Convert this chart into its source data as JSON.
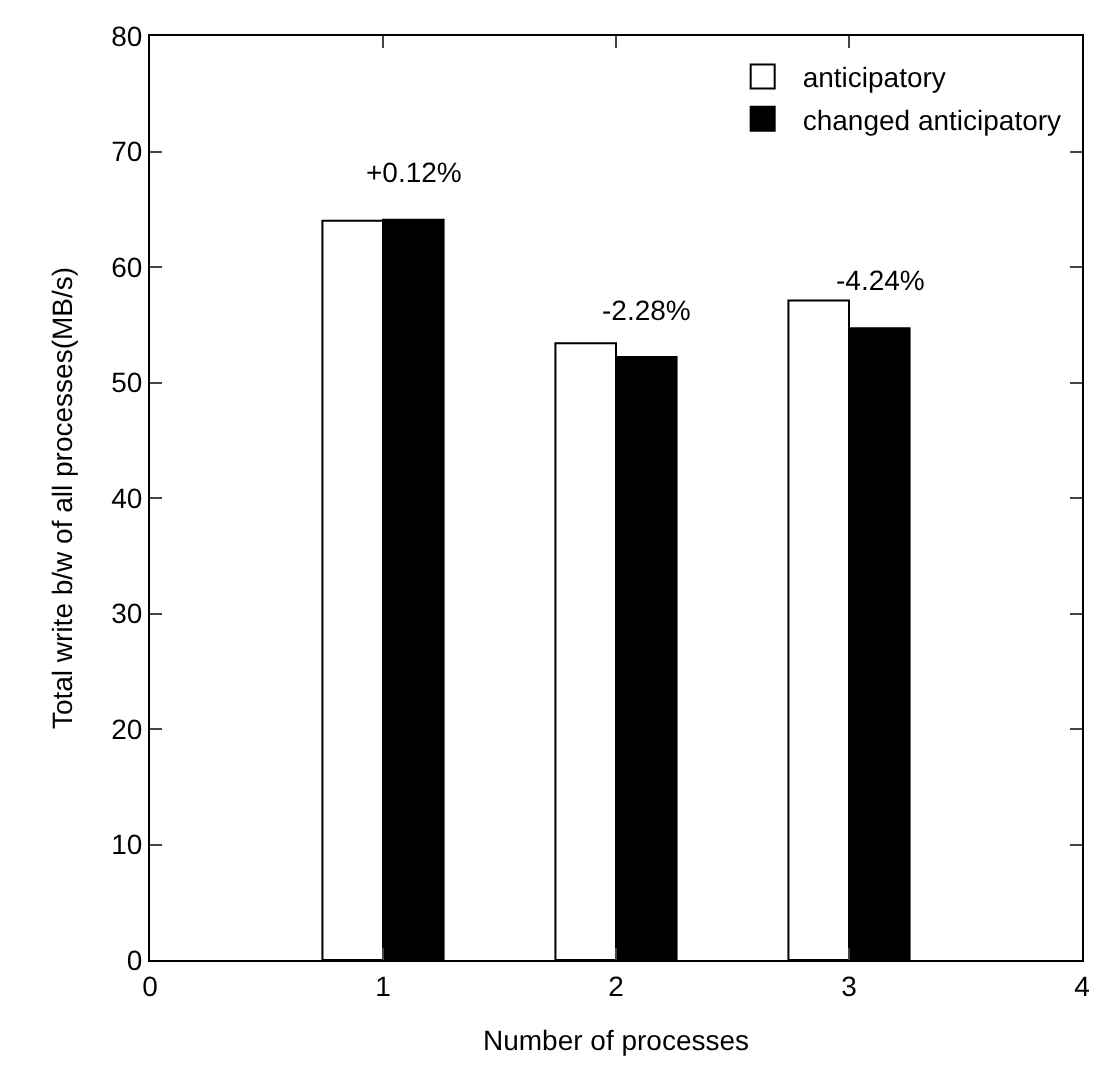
{
  "chart_data": {
    "type": "bar",
    "xlabel": "Number of processes",
    "ylabel": "Total write b/w of all processes(MB/s)",
    "x": [
      1,
      2,
      3
    ],
    "series": [
      {
        "name": "anticipatory",
        "color": "#ffffff",
        "values": [
          64.0,
          53.4,
          57.1
        ]
      },
      {
        "name": "changed anticipatory",
        "color": "#000000",
        "values": [
          64.1,
          52.2,
          54.7
        ]
      }
    ],
    "annotations": [
      {
        "text": "+0.12%",
        "x": 1.13,
        "y": 64.1
      },
      {
        "text": "-2.28%",
        "x": 2.13,
        "y": 52.2
      },
      {
        "text": "-4.24%",
        "x": 3.13,
        "y": 54.7
      }
    ],
    "xlim": [
      0,
      4
    ],
    "xticks": [
      0,
      1,
      2,
      3,
      4
    ],
    "ylim": [
      0,
      80
    ],
    "yticks": [
      0,
      10,
      20,
      30,
      40,
      50,
      60,
      70,
      80
    ],
    "legend": "top right"
  }
}
